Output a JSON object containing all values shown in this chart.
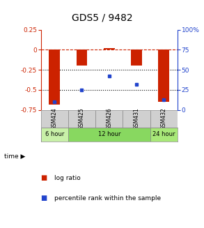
{
  "title": "GDS5 / 9482",
  "samples": [
    "GSM424",
    "GSM425",
    "GSM426",
    "GSM431",
    "GSM432"
  ],
  "log_ratio": [
    -0.68,
    -0.2,
    0.02,
    -0.2,
    -0.65
  ],
  "percentile_rank": [
    10,
    25,
    42,
    32,
    13
  ],
  "ylim_left": [
    -0.75,
    0.25
  ],
  "ylim_right": [
    0,
    100
  ],
  "left_ticks": [
    0.25,
    0,
    -0.25,
    -0.5,
    -0.75
  ],
  "right_ticks": [
    100,
    75,
    50,
    25,
    0
  ],
  "right_tick_labels": [
    "100%",
    "75",
    "50",
    "25",
    "0"
  ],
  "time_groups": [
    {
      "label": "6 hour",
      "span": [
        0,
        1
      ],
      "color": "#c8f0a8"
    },
    {
      "label": "12 hour",
      "span": [
        1,
        4
      ],
      "color": "#88d860"
    },
    {
      "label": "24 hour",
      "span": [
        4,
        5
      ],
      "color": "#a8e878"
    }
  ],
  "bar_color": "#cc2200",
  "dot_color": "#2244cc",
  "bg_color": "#ffffff",
  "sample_bg_color": "#d0d0d0",
  "dashed_zero_color": "#cc2200",
  "title_fontsize": 10,
  "tick_fontsize": 6.5,
  "label_fontsize": 6.5,
  "bar_width": 0.4
}
